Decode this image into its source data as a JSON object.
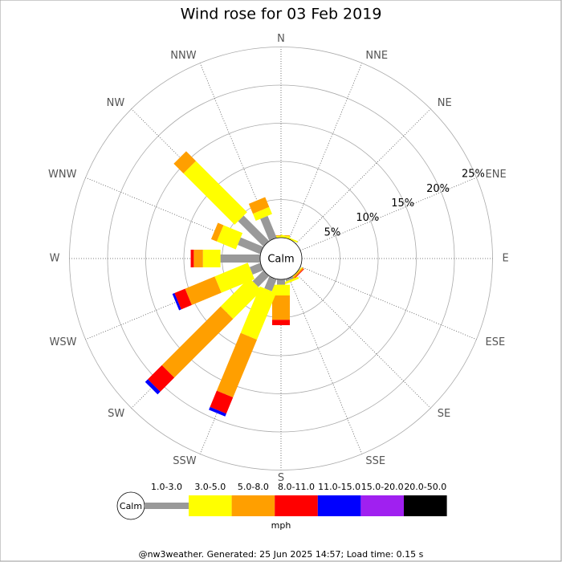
{
  "chart_data": {
    "type": "windrose",
    "title": "Wind rose for 03 Feb 2019",
    "categories": [
      "N",
      "NNE",
      "NE",
      "ENE",
      "E",
      "ESE",
      "SE",
      "SSE",
      "S",
      "SSW",
      "SW",
      "WSW",
      "W",
      "WNW",
      "NW",
      "NNW"
    ],
    "series": [
      {
        "name": "1.0-3.0",
        "color": "#999999",
        "values": [
          0,
          0,
          0,
          0,
          0,
          0,
          0,
          0.3,
          0.7,
          1.7,
          2.0,
          1.5,
          5.2,
          3.2,
          4.7,
          3.1
        ]
      },
      {
        "name": "3.0-5.0",
        "color": "#ffff00",
        "values": [
          0.2,
          0.2,
          0,
          0,
          0,
          0,
          0.1,
          0.3,
          1.4,
          6.6,
          5.3,
          4.7,
          2.3,
          2.7,
          9.5,
          1.0
        ]
      },
      {
        "name": "5.0-8.0",
        "color": "#ff9f00",
        "values": [
          0.1,
          0,
          0,
          0,
          0,
          0,
          0.2,
          0,
          3.2,
          8.2,
          10.9,
          4.2,
          1.2,
          0.8,
          1.8,
          1.4
        ]
      },
      {
        "name": "8.0-11.0",
        "color": "#ff0000",
        "values": [
          0,
          0,
          0,
          0,
          0,
          0,
          0.1,
          0,
          0.7,
          2.3,
          2.6,
          1.5,
          0.4,
          0,
          0,
          0
        ]
      },
      {
        "name": "11.0-15.0",
        "color": "#0000ff",
        "values": [
          0,
          0,
          0,
          0,
          0,
          0,
          0,
          0,
          0,
          0.4,
          0.5,
          0.3,
          0,
          0,
          0,
          0
        ]
      },
      {
        "name": "15.0-20.0",
        "color": "#a020f0",
        "values": [
          0,
          0,
          0,
          0,
          0,
          0,
          0,
          0,
          0,
          0,
          0,
          0,
          0,
          0,
          0,
          0
        ]
      },
      {
        "name": "20.0-50.0",
        "color": "#000000",
        "values": [
          0,
          0,
          0,
          0,
          0,
          0,
          0,
          0,
          0,
          0,
          0,
          0,
          0,
          0,
          0,
          0
        ]
      }
    ],
    "rlim": [
      0,
      25
    ],
    "rticks": [
      {
        "value": 5,
        "label": "5%"
      },
      {
        "value": 10,
        "label": "10%"
      },
      {
        "value": 15,
        "label": "15%"
      },
      {
        "value": 20,
        "label": "20%"
      },
      {
        "value": 25,
        "label": "25%"
      }
    ],
    "calm_label": "Calm",
    "legend_unit": "mph",
    "footer": "@nw3weather. Generated: 25 Jun 2025 14:57; Load time: 0.15 s"
  }
}
